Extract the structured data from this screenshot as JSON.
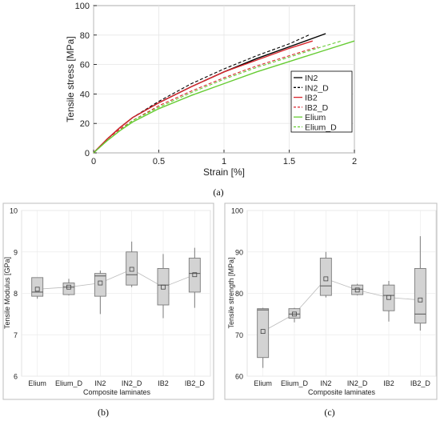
{
  "chart_data": [
    {
      "panel": "(a)",
      "type": "line",
      "xlabel": "Strain [%]",
      "ylabel": "Tensile stress [MPa]",
      "xlim": [
        0,
        2
      ],
      "ylim": [
        0,
        100
      ],
      "xticks": [
        "0",
        "0.5",
        "1",
        "1.5",
        "2"
      ],
      "yticks": [
        "0",
        "20",
        "40",
        "60",
        "80",
        "100"
      ],
      "legend_position": "right",
      "series": [
        {
          "name": "IN2",
          "color": "#000000",
          "dash": "solid",
          "x": [
            0,
            0.1,
            0.2,
            0.3,
            0.5,
            0.75,
            1.0,
            1.25,
            1.5,
            1.78
          ],
          "y": [
            0,
            9,
            17,
            24,
            34,
            45,
            55,
            64,
            72,
            81
          ]
        },
        {
          "name": "IN2_D",
          "color": "#000000",
          "dash": "dashed",
          "x": [
            0,
            0.1,
            0.2,
            0.3,
            0.5,
            0.75,
            1.0,
            1.25,
            1.5,
            1.65
          ],
          "y": [
            0,
            9,
            17,
            24,
            35,
            47,
            57,
            66,
            74,
            80
          ]
        },
        {
          "name": "IB2",
          "color": "#d9262d",
          "dash": "solid",
          "x": [
            0,
            0.1,
            0.2,
            0.3,
            0.5,
            0.75,
            1.0,
            1.25,
            1.5,
            1.68
          ],
          "y": [
            0,
            9,
            17,
            24,
            34,
            45,
            55,
            63,
            71,
            76
          ]
        },
        {
          "name": "IB2_D",
          "color": "#d9262d",
          "dash": "dashed",
          "x": [
            0,
            0.1,
            0.2,
            0.3,
            0.5,
            0.75,
            1.0,
            1.25,
            1.5,
            1.72
          ],
          "y": [
            0,
            9,
            16,
            22,
            32,
            42,
            51,
            59,
            66,
            72
          ]
        },
        {
          "name": "Elium",
          "color": "#66cc33",
          "dash": "solid",
          "x": [
            0,
            0.1,
            0.2,
            0.3,
            0.5,
            0.75,
            1.0,
            1.25,
            1.5,
            1.75,
            2.0
          ],
          "y": [
            0,
            8,
            15,
            21,
            30,
            39,
            47,
            55,
            62,
            69,
            76
          ]
        },
        {
          "name": "Elium_D",
          "color": "#66cc33",
          "dash": "dashed",
          "x": [
            0,
            0.1,
            0.2,
            0.3,
            0.5,
            0.75,
            1.0,
            1.25,
            1.5,
            1.75,
            1.9
          ],
          "y": [
            0,
            8,
            15,
            22,
            31,
            41,
            50,
            58,
            65,
            72,
            76
          ]
        }
      ]
    },
    {
      "panel": "(b)",
      "type": "box",
      "xlabel": "Composite laminates",
      "ylabel": "Tensile Modulus [GPa]",
      "ylim": [
        6,
        10
      ],
      "yticks": [
        "6",
        "7",
        "8",
        "9",
        "10"
      ],
      "categories": [
        "Elium",
        "Elium_D",
        "IN2",
        "IN2_D",
        "IB2",
        "IB2_D"
      ],
      "boxes": [
        {
          "min": 7.87,
          "q1": 7.93,
          "median": 8.03,
          "q3": 8.38,
          "max": 8.38,
          "mean": 8.1
        },
        {
          "min": 7.95,
          "q1": 7.97,
          "median": 8.15,
          "q3": 8.25,
          "max": 8.35,
          "mean": 8.15
        },
        {
          "min": 7.5,
          "q1": 7.93,
          "median": 8.42,
          "q3": 8.48,
          "max": 8.55,
          "mean": 8.25
        },
        {
          "min": 8.15,
          "q1": 8.2,
          "median": 8.45,
          "q3": 9.0,
          "max": 9.25,
          "mean": 8.58
        },
        {
          "min": 7.4,
          "q1": 7.72,
          "median": 8.2,
          "q3": 8.6,
          "max": 8.95,
          "mean": 8.15
        },
        {
          "min": 7.65,
          "q1": 8.03,
          "median": 8.48,
          "q3": 8.85,
          "max": 9.1,
          "mean": 8.45
        }
      ]
    },
    {
      "panel": "(c)",
      "type": "box",
      "xlabel": "Composite laminates",
      "ylabel": "Tensile strength [MPa]",
      "ylim": [
        60,
        100
      ],
      "yticks": [
        "60",
        "70",
        "80",
        "90",
        "100"
      ],
      "categories": [
        "Elium",
        "Elium_D",
        "IN2",
        "IN2_D",
        "IB2",
        "IB2_D"
      ],
      "boxes": [
        {
          "min": 62,
          "q1": 64.5,
          "median": 76,
          "q3": 76.3,
          "max": 76.5,
          "mean": 70.8
        },
        {
          "min": 73,
          "q1": 74,
          "median": 75,
          "q3": 76.3,
          "max": 76.5,
          "mean": 75
        },
        {
          "min": 79,
          "q1": 79.5,
          "median": 81.8,
          "q3": 88.5,
          "max": 90,
          "mean": 83.5
        },
        {
          "min": 79.5,
          "q1": 79.7,
          "median": 81,
          "q3": 82,
          "max": 82.3,
          "mean": 80.8
        },
        {
          "min": 73.2,
          "q1": 75.8,
          "median": 79.5,
          "q3": 82,
          "max": 83,
          "mean": 79
        },
        {
          "min": 71,
          "q1": 72.8,
          "median": 75,
          "q3": 86,
          "max": 93.8,
          "mean": 78.4
        }
      ]
    }
  ]
}
